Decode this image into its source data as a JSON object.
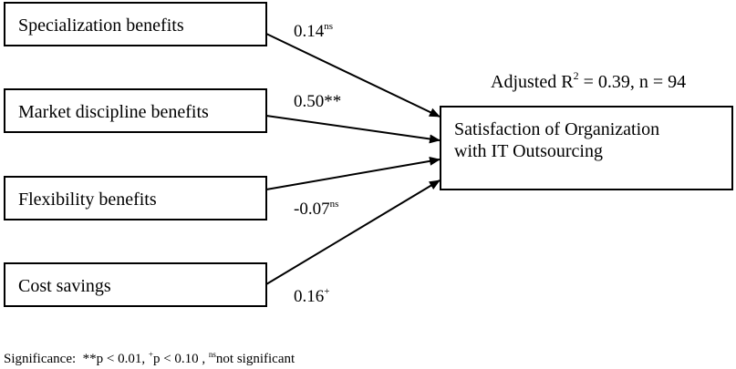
{
  "predictors": [
    {
      "label": "Specialization benefits",
      "coef": "0.14",
      "sig": "ns"
    },
    {
      "label": "Market discipline benefits",
      "coef": "0.50**",
      "sig": ""
    },
    {
      "label": "Flexibility benefits",
      "coef": "-0.07",
      "sig": "ns"
    },
    {
      "label": "Cost savings",
      "coef": "0.16",
      "sig": "+"
    }
  ],
  "outcome": {
    "line1": "Satisfaction of Organization",
    "line2": "with IT Outsourcing"
  },
  "model_stats": {
    "prefix": "Adjusted R",
    "sup": "2",
    "suffix": " = 0.39, n = 94"
  },
  "significance": {
    "label": "Significance:  ",
    "p1": "**p < 0.01, ",
    "p2_sup": "+",
    "p2": "p < 0.10 , ",
    "p3_sup": "ns",
    "p3": "not significant"
  }
}
